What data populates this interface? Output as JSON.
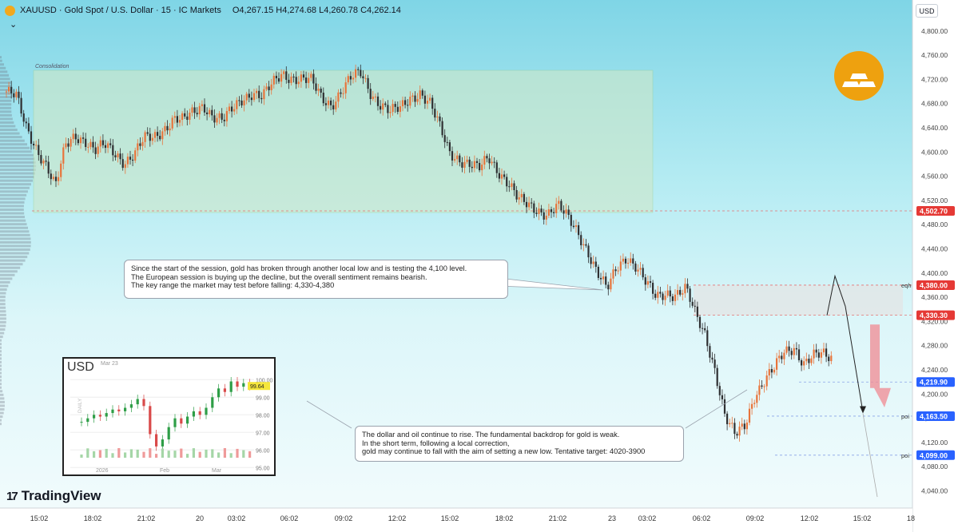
{
  "header": {
    "title": "XAUUSD · Gold Spot / U.S. Dollar · 15 · IC Markets",
    "ohlc": "O4,267.15 H4,274.68 L4,260.78 C4,262.14",
    "collapse_glyph": "⌄"
  },
  "currency_button": "USD",
  "brand": {
    "name": "TradingView",
    "mark": "17"
  },
  "colors": {
    "up": "#e8743b",
    "down": "#2f3032",
    "red_tag": "#e53935",
    "blue_tag": "#2962ff",
    "zone": "#cfe8c9",
    "gold": "#eea10f"
  },
  "chart_data": {
    "type": "candlestick",
    "title": "XAUUSD · Gold Spot / U.S. Dollar · 15 · IC Markets",
    "ylim": [
      4000,
      4840
    ],
    "y_ticks": [
      4000,
      4040,
      4080,
      4120,
      4160,
      4200,
      4240,
      4280,
      4320,
      4360,
      4400,
      4440,
      4480,
      4520,
      4560,
      4600,
      4640,
      4680,
      4720,
      4760,
      4800,
      4840
    ],
    "x_ticks": [
      "15:02",
      "18:02",
      "21:02",
      "20",
      "03:02",
      "06:02",
      "09:02",
      "12:02",
      "15:02",
      "18:02",
      "21:02",
      "23",
      "03:02",
      "06:02",
      "09:02",
      "12:02",
      "15:02",
      "18"
    ],
    "price_path": [
      4700,
      4690,
      4640,
      4610,
      4580,
      4540,
      4610,
      4630,
      4620,
      4600,
      4610,
      4600,
      4585,
      4595,
      4620,
      4625,
      4640,
      4655,
      4650,
      4665,
      4680,
      4660,
      4650,
      4670,
      4690,
      4700,
      4690,
      4710,
      4730,
      4725,
      4720,
      4715,
      4690,
      4680,
      4700,
      4720,
      4730,
      4700,
      4680,
      4665,
      4670,
      4690,
      4700,
      4680,
      4640,
      4600,
      4590,
      4580,
      4570,
      4590,
      4570,
      4550,
      4520,
      4510,
      4505,
      4500,
      4510,
      4490,
      4470,
      4440,
      4400,
      4370,
      4410,
      4430,
      4410,
      4380,
      4360,
      4370,
      4365,
      4372,
      4330,
      4300,
      4240,
      4160,
      4130,
      4150,
      4200,
      4220,
      4240,
      4270,
      4280,
      4250,
      4260,
      4265,
      4262
    ],
    "levels": [
      {
        "label": "4,502.70",
        "price": 4502.7,
        "color": "red",
        "tag": ""
      },
      {
        "label": "4,380.00",
        "price": 4380,
        "color": "red",
        "tag": "eqh"
      },
      {
        "label": "4,330.30",
        "price": 4330.3,
        "color": "red",
        "tag": ""
      },
      {
        "label": "4,219.90",
        "price": 4219.9,
        "color": "blue",
        "tag": ""
      },
      {
        "label": "4,163.50",
        "price": 4163.5,
        "color": "blue",
        "tag": "poi"
      },
      {
        "label": "4,099.00",
        "price": 4099,
        "color": "blue",
        "tag": "poi"
      }
    ],
    "zones": [
      {
        "label": "Consolidation",
        "from": 4500,
        "to": 4735
      },
      {
        "label": "",
        "from": 4330,
        "to": 4380
      }
    ],
    "annotations": {
      "note1": [
        "Since the start of the session, gold has broken through another local low and is testing the 4,100 level.",
        "The European session is buying up the decline, but the overall sentiment remains bearish.",
        "The key range the market may test before falling: 4,330-4,380"
      ],
      "note2": [
        "The dollar and oil continue to rise. The fundamental backdrop for gold is weak.",
        "In the short term, following a local correction,",
        "gold may continue to fall with the aim of setting a new low. Tentative target: 4020-3900"
      ]
    }
  },
  "inset": {
    "currency": "USD",
    "date": "Mar 23",
    "side_label": "DAILY",
    "ticks": [
      "100.00",
      "99.00",
      "98.00",
      "97.00",
      "96.00",
      "95.00"
    ],
    "last": "99.64",
    "months": [
      "2026",
      "Feb",
      "Mar"
    ],
    "closes": [
      97.6,
      97.8,
      98.0,
      97.9,
      98.1,
      98.3,
      98.2,
      98.4,
      98.6,
      98.9,
      98.5,
      96.9,
      96.2,
      96.6,
      97.3,
      97.8,
      97.5,
      97.9,
      98.2,
      98.0,
      98.4,
      99.0,
      99.5,
      99.3,
      99.9,
      99.6,
      99.8,
      99.64
    ]
  }
}
